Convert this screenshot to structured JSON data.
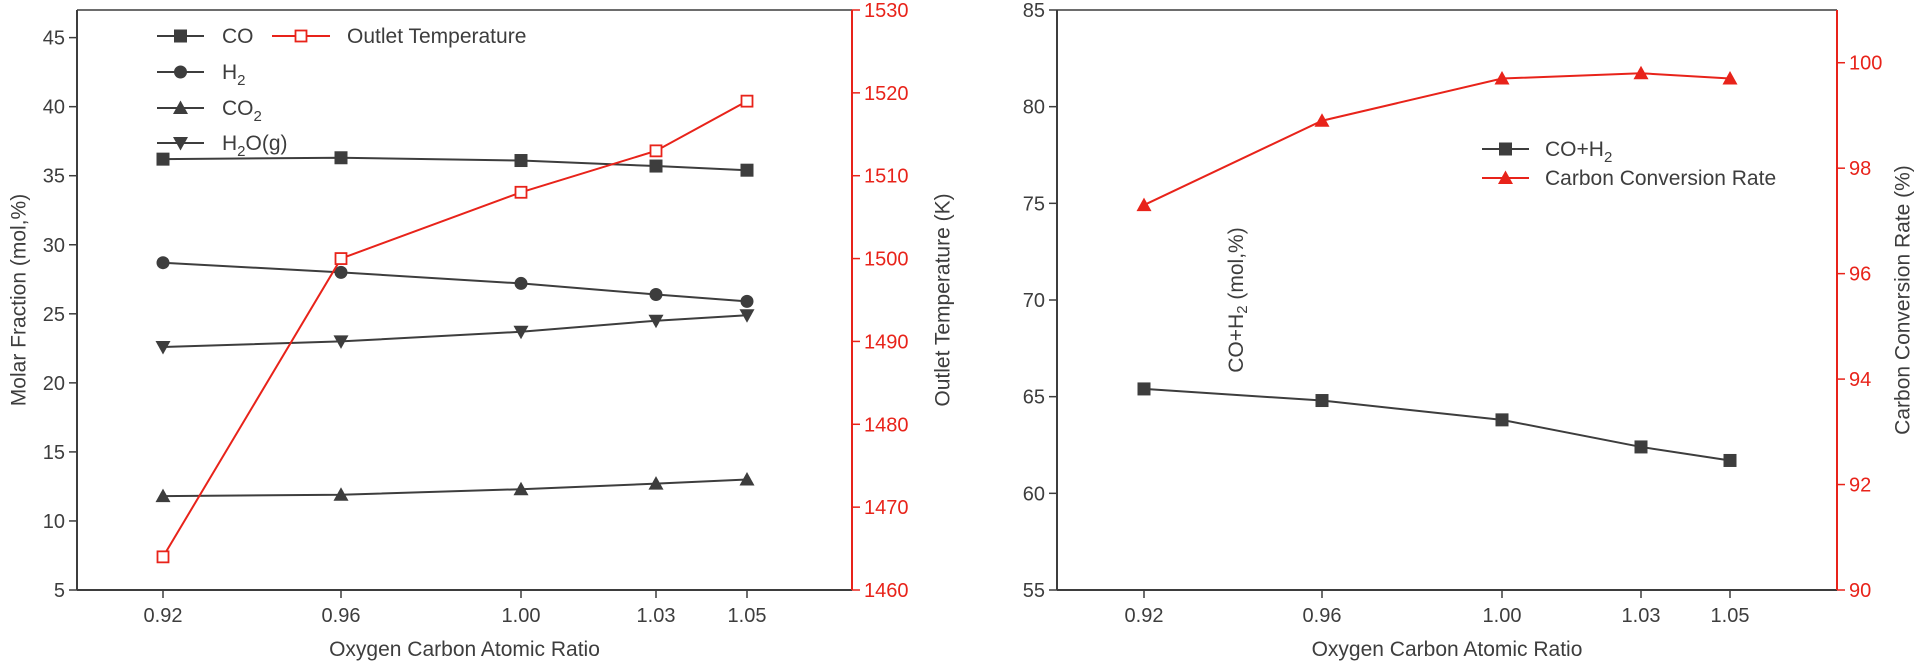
{
  "chart_data": [
    {
      "type": "line",
      "xlabel": "Oxygen Carbon Atomic Ratio",
      "ylabel": "Molar Fraction (mol,%)",
      "y2label": "Outlet Temperature (K)",
      "categories": [
        "0.92",
        "0.96",
        "1.00",
        "1.03",
        "1.05"
      ],
      "ylim": [
        5,
        47
      ],
      "yticks": [
        5,
        10,
        15,
        20,
        25,
        30,
        35,
        40,
        45
      ],
      "y2lim": [
        1460,
        1530
      ],
      "y2ticks": [
        1460,
        1470,
        1480,
        1490,
        1500,
        1510,
        1520,
        1530
      ],
      "series": [
        {
          "name": "CO",
          "base": "CO",
          "sub": "",
          "suffix": "",
          "marker": "square",
          "color": "#3d3d3d",
          "axis": "left",
          "values": [
            36.2,
            36.3,
            36.1,
            35.7,
            35.4
          ]
        },
        {
          "name": "H2",
          "base": "H",
          "sub": "2",
          "suffix": "",
          "marker": "circle",
          "color": "#3d3d3d",
          "axis": "left",
          "values": [
            28.7,
            28.0,
            27.2,
            26.4,
            25.9
          ]
        },
        {
          "name": "CO2",
          "base": "CO",
          "sub": "2",
          "suffix": "",
          "marker": "triangle-up",
          "color": "#3d3d3d",
          "axis": "left",
          "values": [
            11.8,
            11.9,
            12.3,
            12.7,
            13.0
          ]
        },
        {
          "name": "H2O(g)",
          "base": "H",
          "sub": "2",
          "suffix": "O(g)",
          "marker": "triangle-down",
          "color": "#3d3d3d",
          "axis": "left",
          "values": [
            22.6,
            23.0,
            23.7,
            24.5,
            24.9
          ]
        },
        {
          "name": "Outlet Temperature",
          "base": "Outlet Temperature",
          "sub": "",
          "suffix": "",
          "marker": "open-square",
          "color": "#e8231a",
          "axis": "right",
          "values": [
            1464,
            1500,
            1508,
            1513,
            1519
          ]
        }
      ]
    },
    {
      "type": "line",
      "xlabel": "Oxygen Carbon Atomic Ratio",
      "ylabel": "CO+H2 (mol,%)",
      "y2label": "Carbon Conversion Rate (%)",
      "categories": [
        "0.92",
        "0.96",
        "1.00",
        "1.03",
        "1.05"
      ],
      "ylim": [
        55,
        85
      ],
      "yticks": [
        55,
        60,
        65,
        70,
        75,
        80,
        85
      ],
      "y2lim": [
        90,
        101
      ],
      "y2ticks": [
        90,
        92,
        94,
        96,
        98,
        100
      ],
      "series": [
        {
          "name": "CO+H2",
          "base": "CO+H",
          "sub": "2",
          "suffix": "",
          "marker": "square",
          "color": "#3d3d3d",
          "axis": "left",
          "values": [
            65.4,
            64.8,
            63.8,
            62.4,
            61.7
          ]
        },
        {
          "name": "Carbon Conversion Rate",
          "base": "Carbon Conversion Rate",
          "sub": "",
          "suffix": "",
          "marker": "triangle-up",
          "color": "#e8231a",
          "axis": "right",
          "values": [
            97.3,
            98.9,
            99.7,
            99.8,
            99.7
          ]
        }
      ]
    }
  ]
}
